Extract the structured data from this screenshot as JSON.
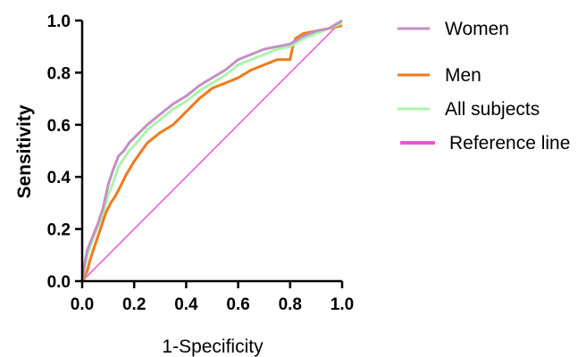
{
  "chart_data": {
    "type": "line",
    "title": "",
    "xlabel": "1-Specificity",
    "ylabel": "Sensitivity",
    "xlim": [
      0,
      1
    ],
    "ylim": [
      0,
      1
    ],
    "x_ticks": [
      "0.0",
      "0.2",
      "0.4",
      "0.6",
      "0.8",
      "1.0"
    ],
    "y_ticks": [
      "0.0",
      "0.2",
      "0.4",
      "0.6",
      "0.8",
      "1.0"
    ],
    "grid": false,
    "legend_position": "right",
    "series": [
      {
        "name": "Women",
        "color": "#c48fc4",
        "points": [
          [
            0,
            0
          ],
          [
            0.01,
            0.07
          ],
          [
            0.02,
            0.12
          ],
          [
            0.04,
            0.17
          ],
          [
            0.06,
            0.22
          ],
          [
            0.08,
            0.28
          ],
          [
            0.1,
            0.37
          ],
          [
            0.12,
            0.43
          ],
          [
            0.14,
            0.48
          ],
          [
            0.16,
            0.5
          ],
          [
            0.18,
            0.53
          ],
          [
            0.2,
            0.55
          ],
          [
            0.25,
            0.6
          ],
          [
            0.3,
            0.64
          ],
          [
            0.35,
            0.68
          ],
          [
            0.4,
            0.71
          ],
          [
            0.45,
            0.75
          ],
          [
            0.5,
            0.78
          ],
          [
            0.55,
            0.81
          ],
          [
            0.6,
            0.85
          ],
          [
            0.65,
            0.87
          ],
          [
            0.7,
            0.89
          ],
          [
            0.75,
            0.9
          ],
          [
            0.8,
            0.91
          ],
          [
            0.85,
            0.94
          ],
          [
            0.9,
            0.96
          ],
          [
            0.95,
            0.97
          ],
          [
            1,
            1
          ]
        ]
      },
      {
        "name": "Men",
        "color": "#f07a1a",
        "points": [
          [
            0,
            0
          ],
          [
            0.01,
            0.02
          ],
          [
            0.02,
            0.04
          ],
          [
            0.03,
            0.08
          ],
          [
            0.05,
            0.14
          ],
          [
            0.07,
            0.2
          ],
          [
            0.09,
            0.26
          ],
          [
            0.11,
            0.3
          ],
          [
            0.13,
            0.33
          ],
          [
            0.15,
            0.37
          ],
          [
            0.17,
            0.41
          ],
          [
            0.2,
            0.46
          ],
          [
            0.25,
            0.53
          ],
          [
            0.3,
            0.57
          ],
          [
            0.35,
            0.6
          ],
          [
            0.4,
            0.65
          ],
          [
            0.45,
            0.7
          ],
          [
            0.5,
            0.74
          ],
          [
            0.55,
            0.76
          ],
          [
            0.6,
            0.78
          ],
          [
            0.65,
            0.81
          ],
          [
            0.7,
            0.83
          ],
          [
            0.75,
            0.85
          ],
          [
            0.8,
            0.85
          ],
          [
            0.81,
            0.9
          ],
          [
            0.82,
            0.93
          ],
          [
            0.85,
            0.95
          ],
          [
            0.9,
            0.96
          ],
          [
            0.95,
            0.97
          ],
          [
            1,
            0.98
          ]
        ]
      },
      {
        "name": "All subjects",
        "color": "#a8f5a8",
        "points": [
          [
            0,
            0
          ],
          [
            0.01,
            0.05
          ],
          [
            0.02,
            0.1
          ],
          [
            0.04,
            0.16
          ],
          [
            0.06,
            0.21
          ],
          [
            0.08,
            0.26
          ],
          [
            0.1,
            0.33
          ],
          [
            0.12,
            0.38
          ],
          [
            0.14,
            0.44
          ],
          [
            0.16,
            0.47
          ],
          [
            0.18,
            0.5
          ],
          [
            0.2,
            0.52
          ],
          [
            0.25,
            0.58
          ],
          [
            0.3,
            0.62
          ],
          [
            0.35,
            0.66
          ],
          [
            0.4,
            0.69
          ],
          [
            0.45,
            0.73
          ],
          [
            0.5,
            0.76
          ],
          [
            0.55,
            0.79
          ],
          [
            0.6,
            0.83
          ],
          [
            0.65,
            0.85
          ],
          [
            0.7,
            0.87
          ],
          [
            0.75,
            0.89
          ],
          [
            0.8,
            0.9
          ],
          [
            0.85,
            0.93
          ],
          [
            0.9,
            0.95
          ],
          [
            0.95,
            0.97
          ],
          [
            1,
            0.99
          ]
        ]
      },
      {
        "name": "Reference line",
        "color": "#e857d8",
        "points": [
          [
            0,
            0
          ],
          [
            1,
            1
          ]
        ]
      }
    ]
  }
}
